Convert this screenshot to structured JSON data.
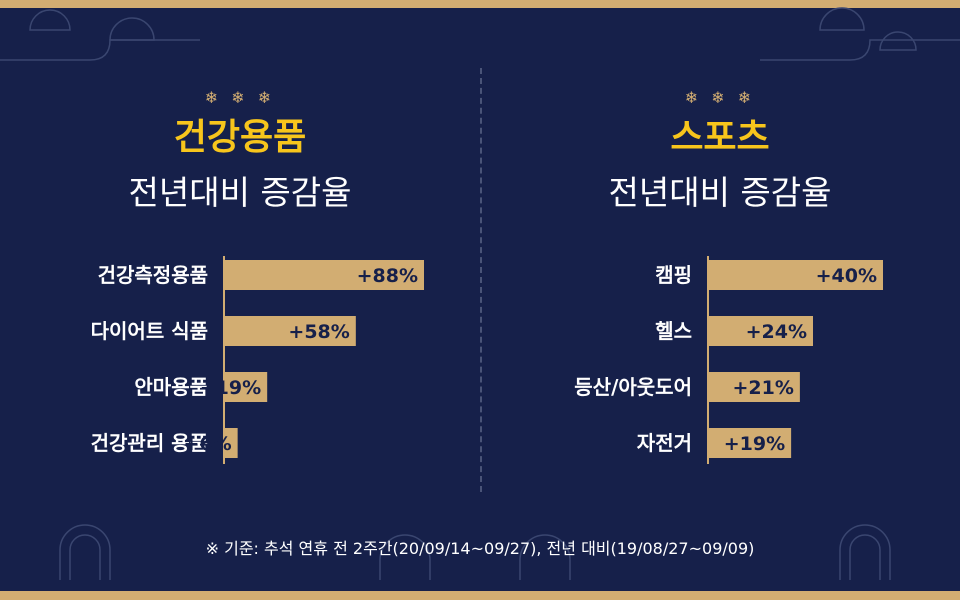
{
  "note": "※ 기준: 추석 연휴 전 2주간(20/09/14~09/27), 전년 대비(19/08/27~09/09)",
  "ornament": "❄ ❄ ❄",
  "colors": {
    "background": "#16204a",
    "bar": "#d2ad72",
    "title": "#f7c51c",
    "text": "#ffffff"
  },
  "panels": [
    {
      "title": "건강용품",
      "subtitle": "전년대비 증감율"
    },
    {
      "title": "스포츠",
      "subtitle": "전년대비 증감율"
    }
  ],
  "chart_data": [
    {
      "type": "bar",
      "orientation": "horizontal",
      "title": "건강용품",
      "subtitle": "전년대비 증감율",
      "categories": [
        "건강측정용품",
        "다이어트 식품",
        "안마용품",
        "건강관리 용품"
      ],
      "values": [
        88,
        58,
        19,
        6
      ],
      "value_labels": [
        "+88%",
        "+58%",
        "+19%",
        "+6%"
      ]
    },
    {
      "type": "bar",
      "orientation": "horizontal",
      "title": "스포츠",
      "subtitle": "전년대비 증감율",
      "categories": [
        "캠핑",
        "헬스",
        "등산/아웃도어",
        "자전거"
      ],
      "values": [
        40,
        24,
        21,
        19
      ],
      "value_labels": [
        "+40%",
        "+24%",
        "+21%",
        "+19%"
      ]
    }
  ]
}
